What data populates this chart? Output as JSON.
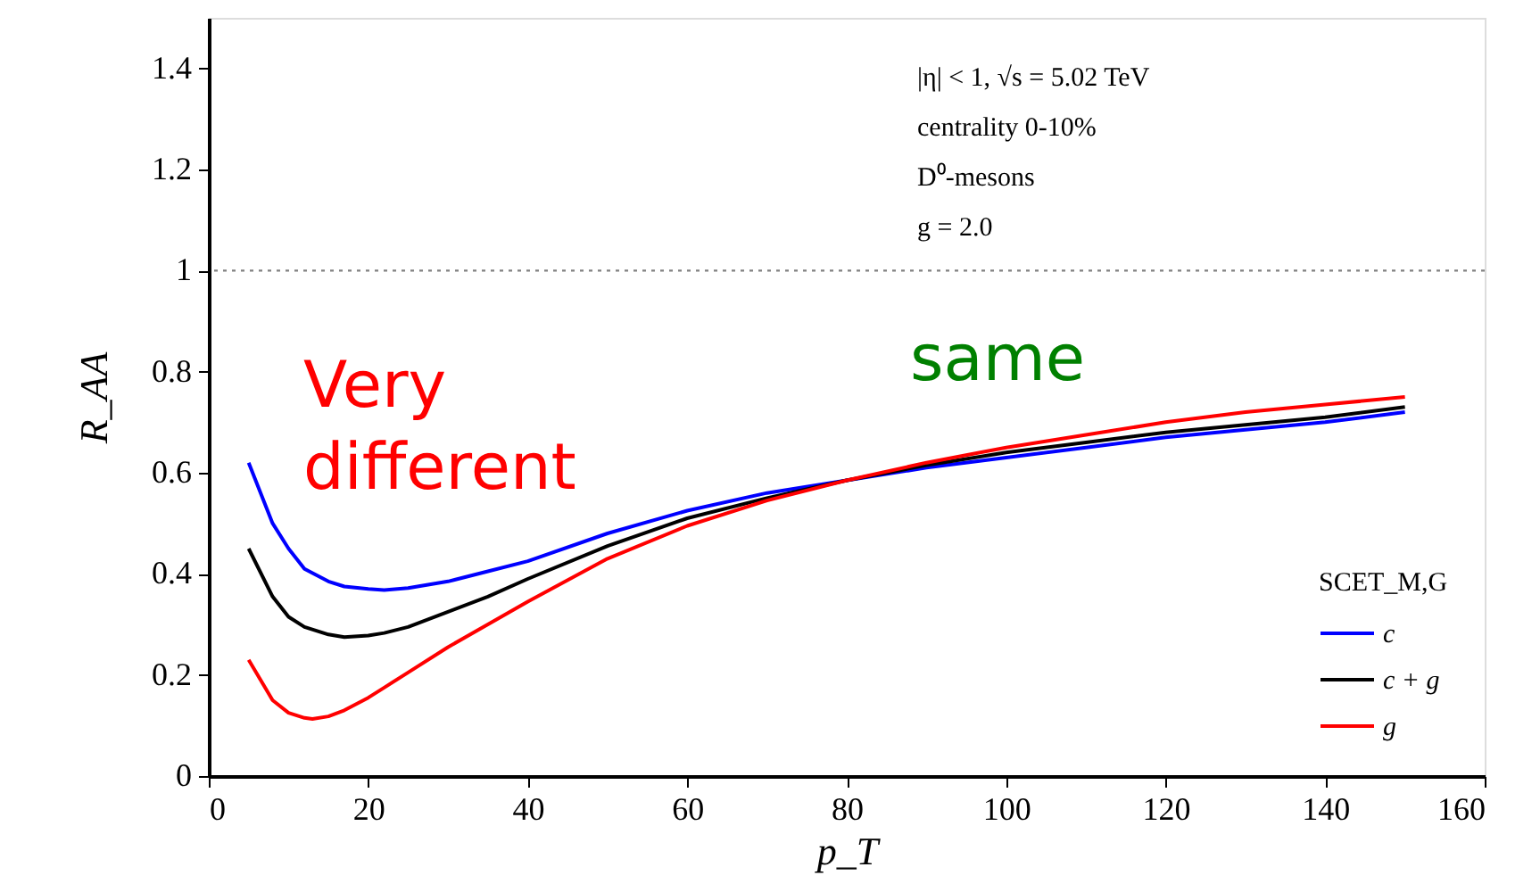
{
  "chart_data": {
    "type": "line",
    "xlabel": "p_T",
    "ylabel": "R_AA",
    "legend_title": "SCET_M,G",
    "legend": "bottom right",
    "grid": false,
    "marker": "none",
    "line_style": "solid",
    "xlim": [
      0,
      160
    ],
    "xticks": [
      0,
      20,
      40,
      60,
      80,
      100,
      120,
      140,
      160
    ],
    "ylim": [
      0,
      1.5
    ],
    "yticks": [
      0,
      0.2,
      0.4,
      0.6,
      0.8,
      1,
      1.2,
      1.4
    ],
    "ref_lines": [
      {
        "axis": "y",
        "value": 1,
        "color": "#808080",
        "line_style": "dotted"
      }
    ],
    "annotations": [
      "|η| < 1, √s = 5.02 TeV",
      "centrality 0-10%",
      "D⁰-mesons",
      "g = 2.0",
      "Very different",
      "same"
    ],
    "series": [
      {
        "name": "c",
        "color": "#0000ff",
        "x": [
          5,
          8,
          10,
          12,
          15,
          17,
          20,
          22,
          25,
          30,
          35,
          40,
          50,
          60,
          70,
          80,
          90,
          100,
          110,
          120,
          130,
          140,
          150
        ],
        "values": [
          0.62,
          0.5,
          0.45,
          0.41,
          0.385,
          0.375,
          0.37,
          0.368,
          0.372,
          0.385,
          0.405,
          0.425,
          0.48,
          0.525,
          0.56,
          0.585,
          0.61,
          0.63,
          0.65,
          0.67,
          0.685,
          0.7,
          0.72
        ]
      },
      {
        "name": "c + g",
        "color": "#000000",
        "x": [
          5,
          8,
          10,
          12,
          15,
          17,
          20,
          22,
          25,
          30,
          35,
          40,
          50,
          60,
          70,
          80,
          90,
          100,
          110,
          120,
          130,
          140,
          150
        ],
        "values": [
          0.45,
          0.355,
          0.315,
          0.295,
          0.28,
          0.275,
          0.278,
          0.283,
          0.295,
          0.325,
          0.355,
          0.39,
          0.455,
          0.51,
          0.55,
          0.585,
          0.615,
          0.64,
          0.66,
          0.68,
          0.695,
          0.71,
          0.73
        ]
      },
      {
        "name": "g",
        "color": "#ff0000",
        "x": [
          5,
          8,
          10,
          12,
          13,
          15,
          17,
          20,
          22,
          25,
          30,
          35,
          40,
          50,
          60,
          70,
          80,
          90,
          100,
          110,
          120,
          130,
          140,
          150
        ],
        "values": [
          0.23,
          0.15,
          0.125,
          0.115,
          0.113,
          0.118,
          0.13,
          0.155,
          0.175,
          0.205,
          0.255,
          0.3,
          0.345,
          0.43,
          0.495,
          0.545,
          0.585,
          0.62,
          0.65,
          0.675,
          0.7,
          0.72,
          0.735,
          0.75
        ]
      }
    ]
  }
}
